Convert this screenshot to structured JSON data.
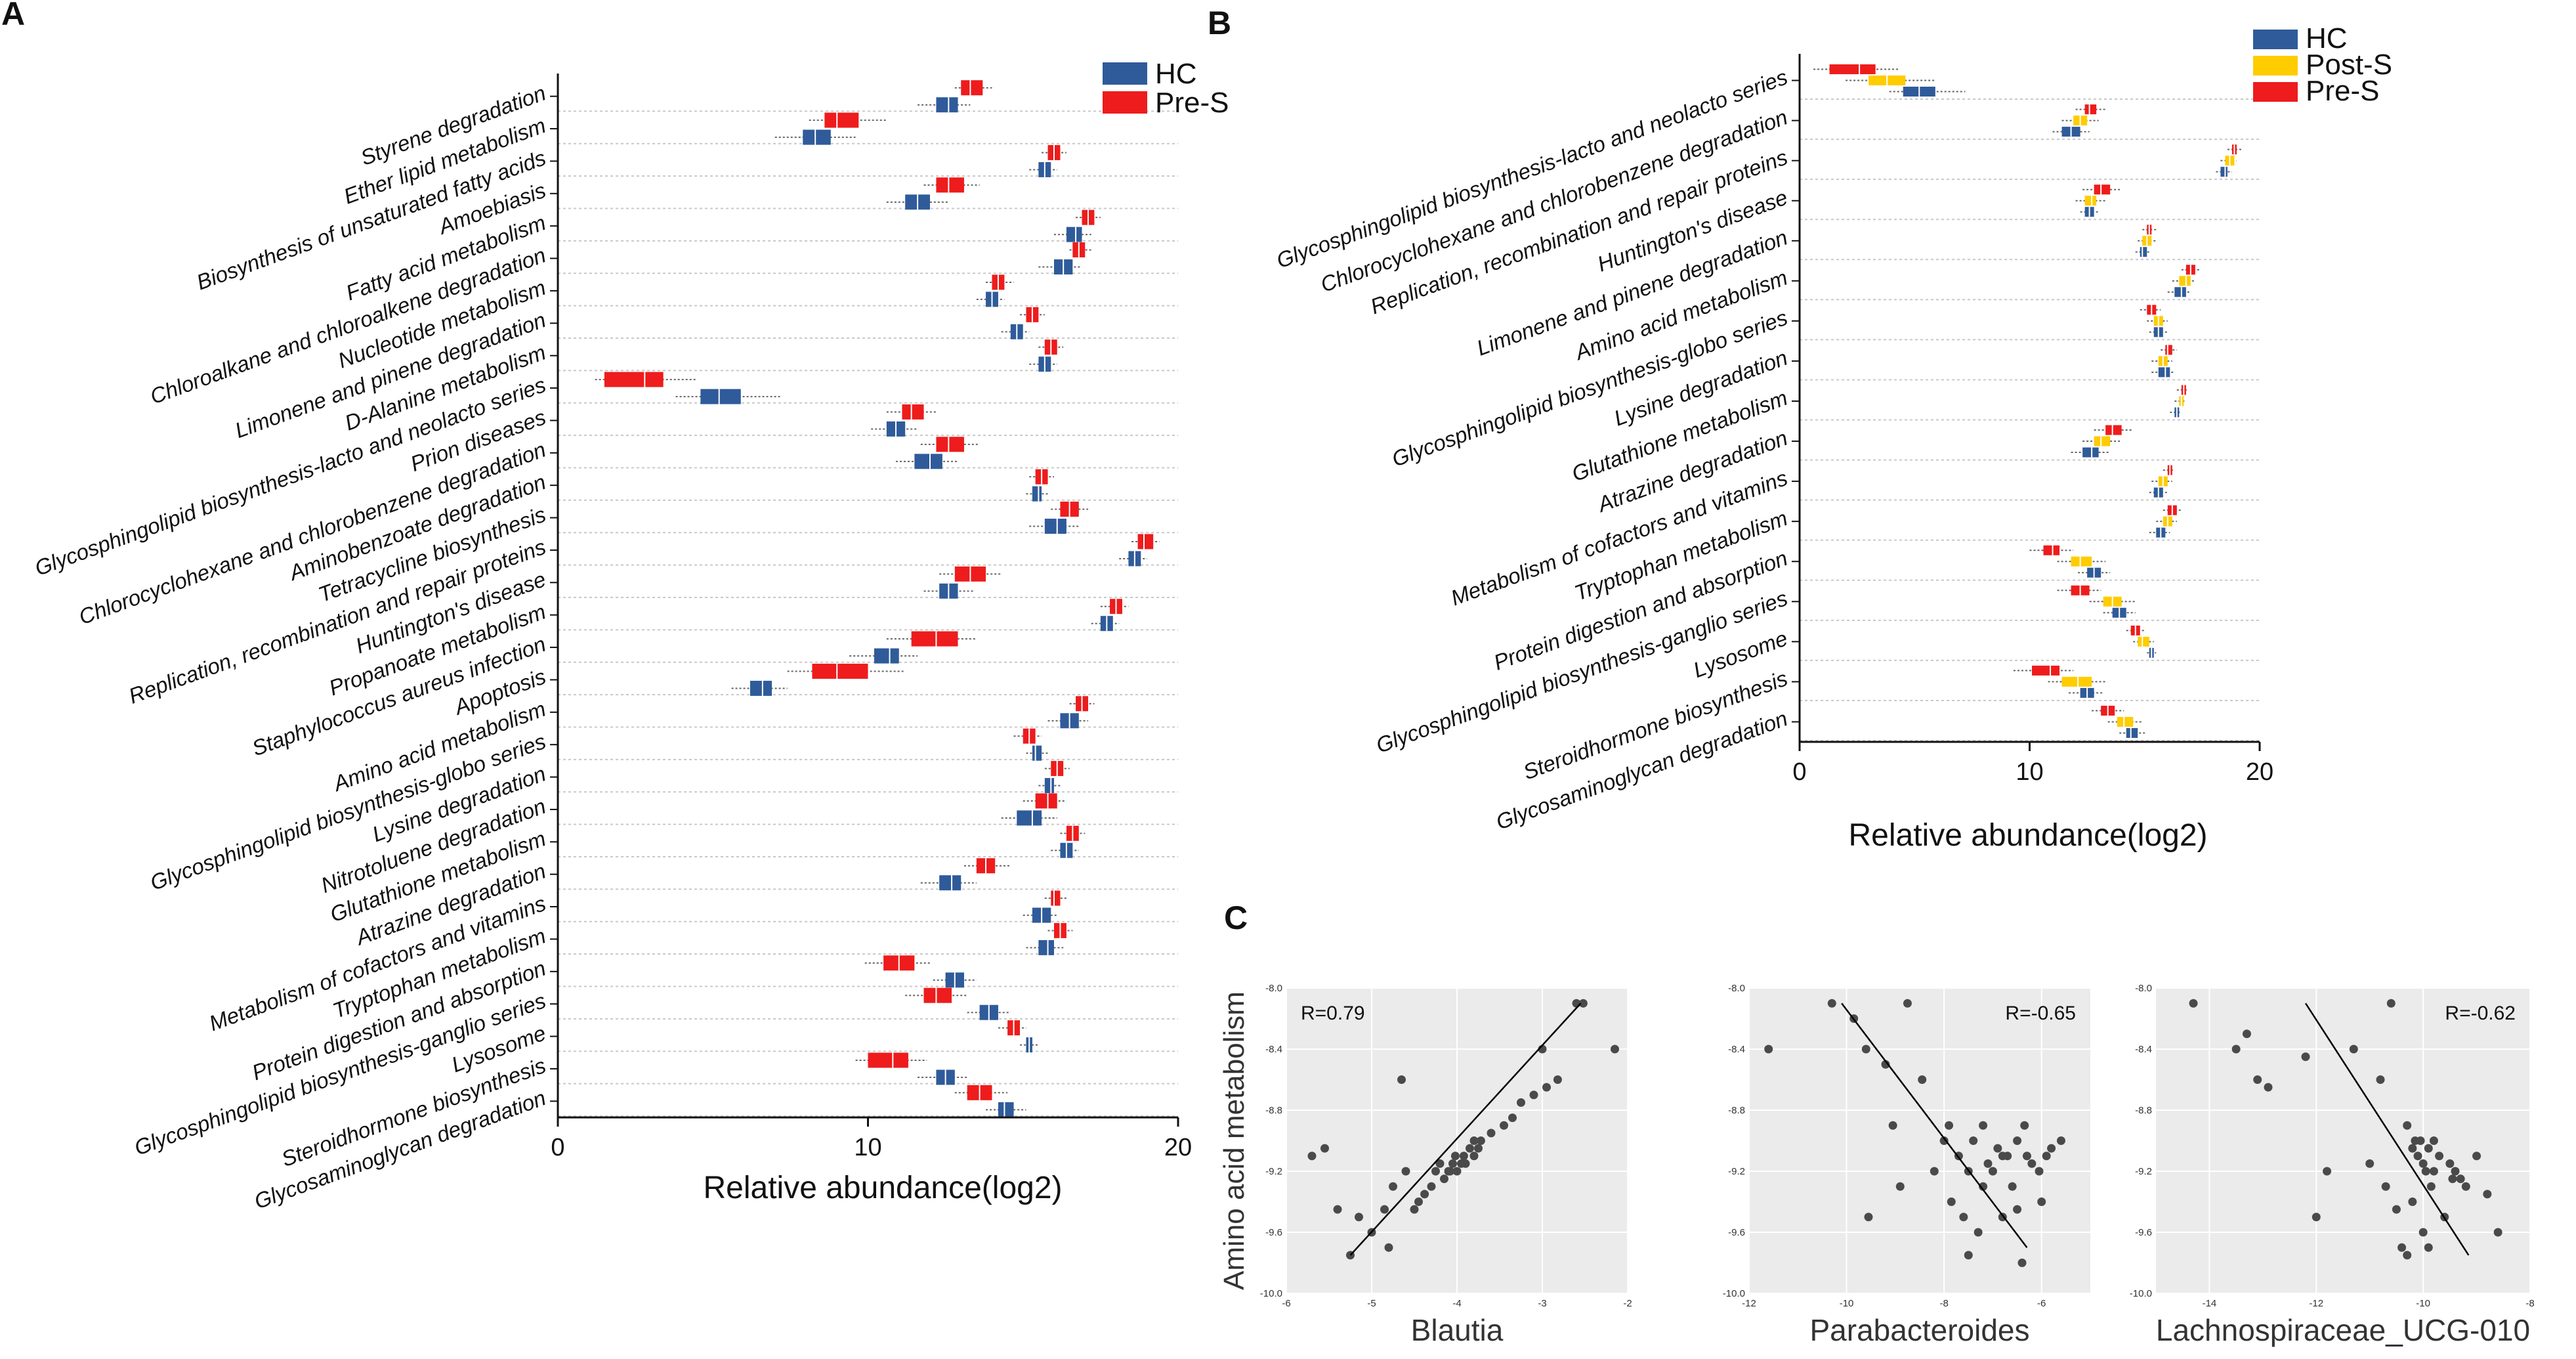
{
  "panels": {
    "a": "A",
    "b": "B",
    "c": "C"
  },
  "colors": {
    "hc": "#2f5b9a",
    "pre_s": "#ee1c1c",
    "post_s": "#ffcc00",
    "grid": "#c8c8c8",
    "scatter_bg": "#ebebeb",
    "point": "#4a4a4a"
  },
  "chart_data": [
    {
      "id": "A",
      "type": "boxplot",
      "orientation": "horizontal",
      "xlabel": "Relative abundance(log2)",
      "xlim": [
        0,
        20
      ],
      "xticks": [
        0,
        10,
        20
      ],
      "legend": [
        "HC",
        "Pre-S"
      ],
      "legend_position": "top-right",
      "categories": [
        "Styrene degradation",
        "Ether lipid metabolism",
        "Biosynthesis of unsaturated fatty acids",
        "Amoebiasis",
        "Fatty acid metabolism",
        "Chloroalkane and chloroalkene degradation",
        "Nucleotide metabolism",
        "Limonene and pinene degradation",
        "D-Alanine metabolism",
        "Glycosphingolipid biosynthesis-lacto and neolacto series",
        "Prion diseases",
        "Chlorocyclohexane and chlorobenzene degradation",
        "Aminobenzoate degradation",
        "Tetracycline biosynthesis",
        "Replication, recombination and repair proteins",
        "Huntington's disease",
        "Propanoate metabolism",
        "Staphylococcus aureus infection",
        "Apoptosis",
        "Amino acid metabolism",
        "Glycosphingolipid biosynthesis-globo series",
        "Lysine degradation",
        "Nitrotoluene degradation",
        "Glutathione metabolism",
        "Atrazine degradation",
        "Metabolism of cofactors and vitamins",
        "Tryptophan metabolism",
        "Protein digestion and absorption",
        "Glycosphingolipid biosynthesis-ganglio series",
        "Lysosome",
        "Steroidhormone biosynthesis",
        "Glycosaminoglycan degradation"
      ],
      "series": [
        {
          "name": "Pre-S",
          "median": [
            13.3,
            9.0,
            16.0,
            12.6,
            17.1,
            16.8,
            14.2,
            15.3,
            15.9,
            2.8,
            11.4,
            12.6,
            15.6,
            16.5,
            18.9,
            13.3,
            18.0,
            12.2,
            9.0,
            16.9,
            15.2,
            16.1,
            15.8,
            16.6,
            13.8,
            16.0,
            16.2,
            11.0,
            12.2,
            14.7,
            10.8,
            13.6
          ],
          "q1": [
            13.0,
            8.6,
            15.8,
            12.2,
            16.9,
            16.6,
            14.0,
            15.1,
            15.7,
            1.5,
            11.1,
            12.2,
            15.4,
            16.2,
            18.7,
            12.8,
            17.8,
            11.4,
            8.2,
            16.7,
            15.0,
            15.9,
            15.4,
            16.4,
            13.5,
            15.9,
            16.0,
            10.5,
            11.8,
            14.5,
            10.0,
            13.2
          ],
          "q3": [
            13.7,
            9.7,
            16.2,
            13.1,
            17.3,
            17.0,
            14.4,
            15.5,
            16.1,
            3.4,
            11.8,
            13.1,
            15.8,
            16.8,
            19.2,
            13.8,
            18.2,
            12.9,
            10.0,
            17.1,
            15.4,
            16.3,
            16.1,
            16.8,
            14.1,
            16.2,
            16.4,
            11.5,
            12.7,
            14.9,
            11.3,
            14.0
          ],
          "min": [
            12.8,
            8.1,
            15.6,
            11.8,
            16.7,
            16.5,
            13.8,
            14.9,
            15.5,
            1.2,
            10.6,
            11.7,
            15.2,
            15.9,
            18.5,
            12.3,
            17.5,
            10.6,
            7.4,
            16.5,
            14.7,
            15.7,
            15.0,
            16.2,
            13.1,
            15.7,
            15.8,
            9.9,
            11.2,
            14.2,
            9.6,
            12.8
          ],
          "max": [
            14.0,
            10.6,
            16.4,
            13.6,
            17.5,
            17.2,
            14.7,
            15.7,
            16.3,
            4.5,
            12.2,
            13.6,
            16.0,
            17.1,
            19.4,
            14.3,
            18.4,
            13.5,
            11.2,
            17.3,
            15.6,
            16.5,
            16.4,
            17.0,
            14.6,
            16.4,
            16.6,
            12.0,
            13.2,
            15.1,
            11.9,
            14.5
          ]
        },
        {
          "name": "HC",
          "median": [
            12.6,
            8.3,
            15.7,
            11.6,
            16.7,
            16.3,
            14.0,
            14.8,
            15.7,
            5.2,
            10.9,
            12.0,
            15.5,
            16.1,
            18.6,
            12.6,
            17.7,
            10.7,
            6.6,
            16.5,
            15.4,
            15.9,
            15.3,
            16.4,
            12.7,
            15.6,
            15.8,
            12.8,
            13.9,
            15.2,
            12.5,
            14.4
          ],
          "q1": [
            12.2,
            7.9,
            15.5,
            11.2,
            16.4,
            16.0,
            13.8,
            14.6,
            15.5,
            4.6,
            10.6,
            11.5,
            15.3,
            15.7,
            18.4,
            12.3,
            17.5,
            10.2,
            6.2,
            16.2,
            15.3,
            15.7,
            14.8,
            16.2,
            12.3,
            15.3,
            15.5,
            12.5,
            13.6,
            15.1,
            12.2,
            14.2
          ],
          "q3": [
            12.9,
            8.8,
            15.9,
            12.0,
            16.9,
            16.6,
            14.2,
            15.0,
            15.9,
            5.9,
            11.2,
            12.4,
            15.6,
            16.4,
            18.8,
            12.9,
            17.9,
            11.0,
            6.9,
            16.8,
            15.6,
            16.0,
            15.6,
            16.6,
            13.0,
            15.9,
            16.0,
            13.1,
            14.2,
            15.3,
            12.8,
            14.7
          ],
          "min": [
            11.6,
            7.0,
            15.2,
            10.6,
            16.0,
            15.5,
            13.5,
            14.3,
            15.2,
            3.8,
            10.1,
            10.9,
            15.1,
            15.2,
            18.1,
            11.8,
            17.2,
            9.4,
            5.6,
            15.8,
            15.1,
            15.5,
            14.3,
            15.9,
            11.7,
            15.0,
            15.1,
            12.1,
            13.2,
            14.9,
            11.6,
            13.8
          ],
          "max": [
            13.3,
            9.6,
            16.1,
            12.6,
            17.2,
            16.9,
            14.4,
            15.2,
            16.1,
            7.2,
            11.6,
            12.9,
            15.8,
            16.8,
            19.0,
            13.4,
            18.1,
            11.6,
            7.4,
            17.1,
            15.8,
            16.2,
            16.1,
            16.8,
            13.5,
            16.1,
            16.3,
            13.5,
            14.6,
            15.5,
            13.2,
            15.1
          ]
        }
      ]
    },
    {
      "id": "B",
      "type": "boxplot",
      "orientation": "horizontal",
      "xlabel": "Relative abundance(log2)",
      "xlim": [
        0,
        20
      ],
      "xticks": [
        0,
        10,
        20
      ],
      "legend": [
        "HC",
        "Post-S",
        "Pre-S"
      ],
      "legend_position": "top-right",
      "categories": [
        "Glycosphingolipid biosynthesis-lacto and neolacto series",
        "Chlorocyclohexane and chlorobenzene degradation",
        "Replication, recombination and repair proteins",
        "Huntington's disease",
        "Limonene and pinene degradation",
        "Amino acid metabolism",
        "Glycosphingolipid biosynthesis-globo series",
        "Lysine degradation",
        "Glutathione metabolism",
        "Atrazine degradation",
        "Metabolism of cofactors and vitamins",
        "Tryptophan metabolism",
        "Protein digestion and absorption",
        "Glycosphingolipid biosynthesis-ganglio series",
        "Lysosome",
        "Steroidhormone biosynthesis",
        "Glycosaminoglycan degradation"
      ],
      "series": [
        {
          "name": "Pre-S",
          "median": [
            2.6,
            12.6,
            18.9,
            13.1,
            15.2,
            17.0,
            15.3,
            16.0,
            16.7,
            13.6,
            16.1,
            16.2,
            11.0,
            12.2,
            14.6,
            10.9,
            13.4
          ],
          "q1": [
            1.3,
            12.4,
            18.8,
            12.8,
            15.1,
            16.8,
            15.1,
            15.9,
            16.6,
            13.3,
            16.0,
            16.0,
            10.6,
            11.8,
            14.4,
            10.1,
            13.1
          ],
          "q3": [
            3.3,
            12.9,
            19.0,
            13.5,
            15.3,
            17.2,
            15.5,
            16.2,
            16.8,
            14.0,
            16.2,
            16.4,
            11.3,
            12.6,
            14.8,
            11.3,
            13.7
          ],
          "min": [
            0.6,
            12.0,
            18.6,
            12.3,
            14.9,
            16.6,
            14.8,
            15.7,
            16.4,
            12.8,
            15.8,
            15.8,
            10.0,
            11.2,
            14.2,
            9.3,
            12.7
          ],
          "max": [
            4.3,
            13.3,
            19.2,
            14.0,
            15.5,
            17.4,
            15.7,
            16.4,
            16.9,
            14.5,
            16.3,
            16.6,
            11.9,
            13.1,
            15.0,
            11.9,
            14.1
          ]
        },
        {
          "name": "Post-S",
          "median": [
            3.8,
            12.2,
            18.7,
            12.7,
            15.1,
            16.8,
            15.6,
            15.8,
            16.6,
            13.1,
            15.8,
            16.0,
            12.2,
            13.6,
            14.9,
            12.1,
            14.1
          ],
          "q1": [
            3.0,
            11.9,
            18.5,
            12.4,
            14.9,
            16.5,
            15.4,
            15.6,
            16.5,
            12.8,
            15.6,
            15.8,
            11.8,
            13.2,
            14.7,
            11.4,
            13.8
          ],
          "q3": [
            4.6,
            12.5,
            18.9,
            12.9,
            15.3,
            17.0,
            15.8,
            16.0,
            16.7,
            13.5,
            16.0,
            16.2,
            12.7,
            14.0,
            15.2,
            12.7,
            14.5
          ],
          "min": [
            2.0,
            11.4,
            18.3,
            12.0,
            14.7,
            16.2,
            15.1,
            15.3,
            16.3,
            12.3,
            15.3,
            15.5,
            11.2,
            12.6,
            14.5,
            10.8,
            13.4
          ],
          "max": [
            5.9,
            13.0,
            19.0,
            13.3,
            15.5,
            17.2,
            16.0,
            16.2,
            16.8,
            14.0,
            16.2,
            16.4,
            13.3,
            14.6,
            15.4,
            13.3,
            14.9
          ]
        },
        {
          "name": "HC",
          "median": [
            5.2,
            11.8,
            18.5,
            12.6,
            14.9,
            16.6,
            15.6,
            15.9,
            16.4,
            12.7,
            15.6,
            15.7,
            12.8,
            13.9,
            15.3,
            12.5,
            14.4
          ],
          "q1": [
            4.5,
            11.4,
            18.3,
            12.4,
            14.8,
            16.3,
            15.4,
            15.6,
            16.3,
            12.3,
            15.4,
            15.5,
            12.5,
            13.6,
            15.2,
            12.2,
            14.2
          ],
          "q3": [
            5.9,
            12.2,
            18.6,
            12.8,
            15.1,
            16.8,
            15.8,
            16.1,
            16.5,
            13.0,
            15.8,
            15.9,
            13.1,
            14.2,
            15.4,
            12.8,
            14.7
          ],
          "min": [
            3.9,
            11.0,
            18.1,
            12.2,
            14.6,
            16.0,
            15.2,
            15.3,
            16.1,
            11.8,
            15.2,
            15.2,
            12.1,
            13.2,
            15.1,
            11.7,
            13.9
          ],
          "max": [
            7.2,
            12.6,
            18.8,
            13.0,
            15.2,
            17.0,
            16.0,
            16.3,
            16.6,
            13.5,
            16.0,
            16.1,
            13.5,
            14.6,
            15.5,
            13.2,
            15.1
          ]
        }
      ]
    },
    {
      "id": "C1",
      "type": "scatter",
      "ylabel": "Amino acid metabolism",
      "xlabel": "Blautia",
      "xlim": [
        -6,
        -2
      ],
      "ylim": [
        -10.0,
        -8.0
      ],
      "xticks": [
        "-6",
        "-5",
        "-4",
        "-3",
        "-2"
      ],
      "yticks": [
        "-8.0",
        "-8.4",
        "-8.8",
        "-9.2",
        "-9.6",
        "-10.0"
      ],
      "r": "R=0.79",
      "fit": {
        "x": [
          -5.25,
          -2.55
        ],
        "y": [
          -9.75,
          -8.1
        ]
      },
      "x": [
        -2.6,
        -2.52,
        -2.15,
        -3.0,
        -2.82,
        -2.95,
        -3.1,
        -3.25,
        -3.35,
        -3.45,
        -3.6,
        -3.72,
        -3.75,
        -3.8,
        -3.8,
        -3.85,
        -3.9,
        -3.92,
        -3.95,
        -4.0,
        -4.02,
        -4.05,
        -4.08,
        -4.1,
        -4.15,
        -4.2,
        -4.25,
        -4.3,
        -4.38,
        -4.45,
        -4.5,
        -4.6,
        -4.75,
        -4.85,
        -5.0,
        -5.15,
        -5.25,
        -5.4,
        -5.55,
        -5.7,
        -4.8,
        -4.65
      ],
      "y": [
        -8.1,
        -8.1,
        -8.4,
        -8.4,
        -8.6,
        -8.65,
        -8.7,
        -8.75,
        -8.85,
        -8.9,
        -8.95,
        -9.0,
        -9.05,
        -9.1,
        -9.0,
        -9.05,
        -9.15,
        -9.1,
        -9.15,
        -9.2,
        -9.1,
        -9.15,
        -9.2,
        -9.2,
        -9.25,
        -9.15,
        -9.2,
        -9.3,
        -9.35,
        -9.4,
        -9.45,
        -9.2,
        -9.3,
        -9.45,
        -9.6,
        -9.5,
        -9.75,
        -9.45,
        -9.05,
        -9.1,
        -9.7,
        -8.6
      ]
    },
    {
      "id": "C2",
      "type": "scatter",
      "ylabel": "",
      "xlabel": "Parabacteroides",
      "xlim": [
        -12,
        -5
      ],
      "ylim": [
        -10.0,
        -8.0
      ],
      "xticks": [
        "-12",
        "-10",
        "-8",
        "-6"
      ],
      "yticks": [
        "-8.0",
        "-8.4",
        "-8.8",
        "-9.2",
        "-9.6",
        "-10.0"
      ],
      "r": "R=-0.65",
      "fit": {
        "x": [
          -10.1,
          -6.3
        ],
        "y": [
          -8.1,
          -9.7
        ]
      },
      "x": [
        -11.6,
        -10.3,
        -9.85,
        -9.6,
        -8.75,
        -9.2,
        -9.05,
        -8.9,
        -8.45,
        -8.2,
        -8.0,
        -7.85,
        -7.7,
        -7.6,
        -7.5,
        -7.4,
        -7.3,
        -7.2,
        -7.1,
        -7.0,
        -6.9,
        -6.8,
        -6.7,
        -6.6,
        -6.5,
        -6.4,
        -6.3,
        -6.2,
        -6.0,
        -5.8,
        -5.6,
        -7.5,
        -7.2,
        -6.8,
        -6.5,
        -9.55,
        -7.9,
        -6.35,
        -6.05,
        -5.9
      ],
      "y": [
        -8.4,
        -8.1,
        -8.2,
        -8.4,
        -8.1,
        -8.5,
        -8.9,
        -9.3,
        -8.6,
        -9.2,
        -9.0,
        -9.4,
        -9.1,
        -9.5,
        -9.2,
        -9.0,
        -9.6,
        -9.3,
        -9.15,
        -9.2,
        -9.05,
        -9.5,
        -9.1,
        -9.3,
        -9.0,
        -9.8,
        -9.1,
        -9.15,
        -9.4,
        -9.05,
        -9.0,
        -9.75,
        -8.9,
        -9.1,
        -9.45,
        -9.5,
        -8.9,
        -8.9,
        -9.2,
        -9.1
      ]
    },
    {
      "id": "C3",
      "type": "scatter",
      "ylabel": "",
      "xlabel": "Lachnospiraceae_UCG-010",
      "xlim": [
        -15,
        -8
      ],
      "ylim": [
        -10.0,
        -8.0
      ],
      "xticks": [
        "-14",
        "-12",
        "-10",
        "-8"
      ],
      "yticks": [
        "-8.0",
        "-8.4",
        "-8.8",
        "-9.2",
        "-9.6",
        "-10.0"
      ],
      "r": "R=-0.62",
      "fit": {
        "x": [
          -12.2,
          -9.15
        ],
        "y": [
          -8.1,
          -9.75
        ]
      },
      "x": [
        -14.3,
        -13.5,
        -13.1,
        -12.9,
        -13.3,
        -12.2,
        -11.3,
        -11.8,
        -10.6,
        -10.8,
        -10.3,
        -10.2,
        -10.15,
        -10.1,
        -10.05,
        -10.0,
        -9.95,
        -9.9,
        -9.85,
        -9.8,
        -9.7,
        -9.6,
        -9.5,
        -9.45,
        -9.4,
        -9.3,
        -9.2,
        -9.0,
        -8.8,
        -8.6,
        -10.5,
        -10.4,
        -10.3,
        -10.2,
        -9.9,
        -9.8,
        -11.0,
        -12.0,
        -10.7,
        -10.0
      ],
      "y": [
        -8.1,
        -8.4,
        -8.6,
        -8.65,
        -8.3,
        -8.45,
        -8.4,
        -9.2,
        -8.1,
        -8.6,
        -8.9,
        -9.05,
        -9.0,
        -9.1,
        -9.0,
        -9.15,
        -9.2,
        -9.05,
        -9.3,
        -9.2,
        -9.1,
        -9.5,
        -9.15,
        -9.25,
        -9.2,
        -9.25,
        -9.3,
        -9.1,
        -9.35,
        -9.6,
        -9.45,
        -9.7,
        -9.75,
        -9.4,
        -9.7,
        -9.0,
        -9.15,
        -9.5,
        -9.3,
        -9.6
      ]
    }
  ]
}
